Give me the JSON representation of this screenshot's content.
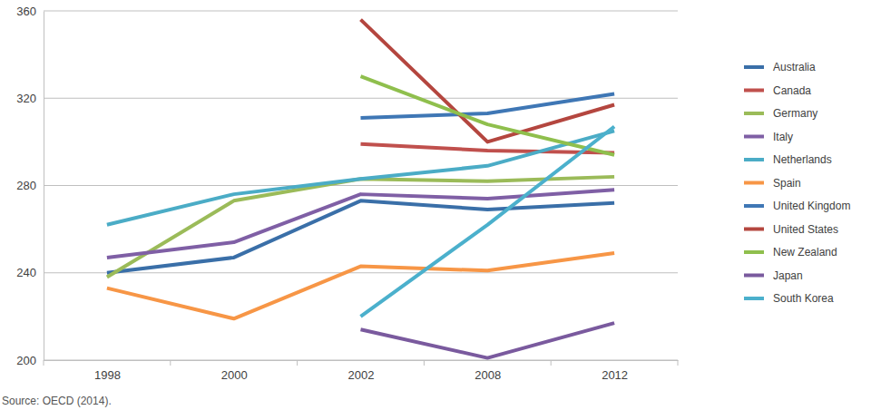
{
  "chart_data": {
    "type": "line",
    "source": "Source: OECD (2014).",
    "categories": [
      "1998",
      "2000",
      "2002",
      "2008",
      "2012"
    ],
    "ylim": [
      200,
      360
    ],
    "yticks": [
      200,
      240,
      280,
      320,
      360
    ],
    "grid": true,
    "legend": "right",
    "series": [
      {
        "name": "Australia",
        "color": "#3a6fa8",
        "values": [
          240,
          247,
          273,
          269,
          272
        ]
      },
      {
        "name": "Canada",
        "color": "#c0504d",
        "values": [
          null,
          null,
          299,
          296,
          295
        ]
      },
      {
        "name": "Germany",
        "color": "#9bbb59",
        "values": [
          238,
          273,
          283,
          282,
          284
        ]
      },
      {
        "name": "Italy",
        "color": "#7f5fa5",
        "values": [
          247,
          254,
          276,
          274,
          278
        ]
      },
      {
        "name": "Netherlands",
        "color": "#4bacc6",
        "values": [
          262,
          276,
          283,
          289,
          305
        ]
      },
      {
        "name": "Spain",
        "color": "#f79646",
        "values": [
          233,
          219,
          243,
          241,
          249
        ]
      },
      {
        "name": "United Kingdom",
        "color": "#3f77b5",
        "values": [
          null,
          null,
          311,
          313,
          322
        ]
      },
      {
        "name": "United States",
        "color": "#b4463f",
        "values": [
          null,
          null,
          356,
          300,
          317
        ]
      },
      {
        "name": "New Zealand",
        "color": "#8fbf4d",
        "values": [
          null,
          null,
          330,
          308,
          294
        ]
      },
      {
        "name": "Japan",
        "color": "#7a5a9e",
        "values": [
          null,
          null,
          214,
          201,
          217
        ]
      },
      {
        "name": "South Korea",
        "color": "#4bb0cc",
        "values": [
          null,
          null,
          220,
          262,
          307
        ]
      }
    ]
  }
}
